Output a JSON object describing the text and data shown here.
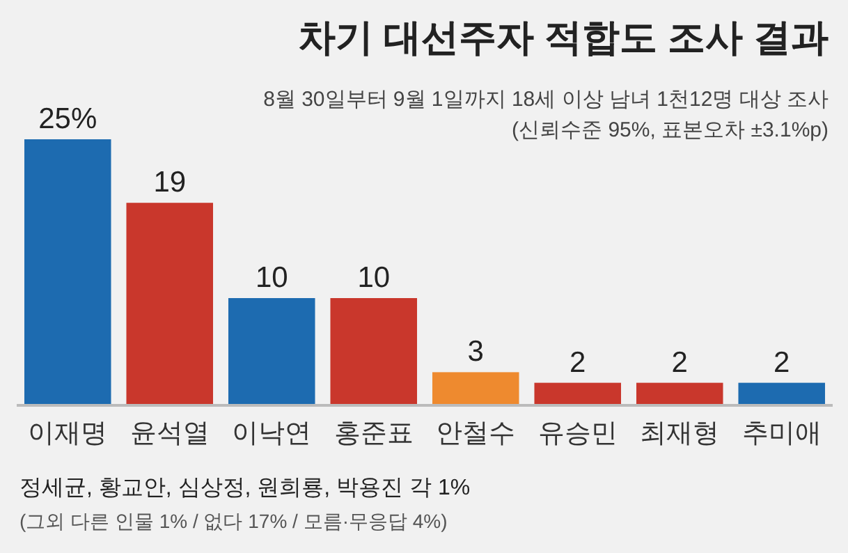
{
  "chart_data": {
    "type": "bar",
    "title": "차기 대선주자 적합도 조사 결과",
    "subtitle": [
      "8월 30일부터 9월 1일까지 18세 이상 남녀 1천12명 대상 조사",
      "(신뢰수준 95%, 표본오차 ±3.1%p)"
    ],
    "categories": [
      "이재명",
      "윤석열",
      "이낙연",
      "홍준표",
      "안철수",
      "유승민",
      "최재형",
      "추미애"
    ],
    "values": [
      25,
      19,
      10,
      10,
      3,
      2,
      2,
      2
    ],
    "value_labels": [
      "25%",
      "19",
      "10",
      "10",
      "3",
      "2",
      "2",
      "2"
    ],
    "colors": [
      "#1d6bb0",
      "#c9372c",
      "#1d6bb0",
      "#c9372c",
      "#ee8a2f",
      "#c9372c",
      "#c9372c",
      "#1d6bb0"
    ],
    "annotations": [
      "정세균, 황교안, 심상정, 원희룡, 박용진 각 1%",
      "(그외 다른 인물 1% / 없다 17% / 모름·무응답 4%)"
    ]
  }
}
